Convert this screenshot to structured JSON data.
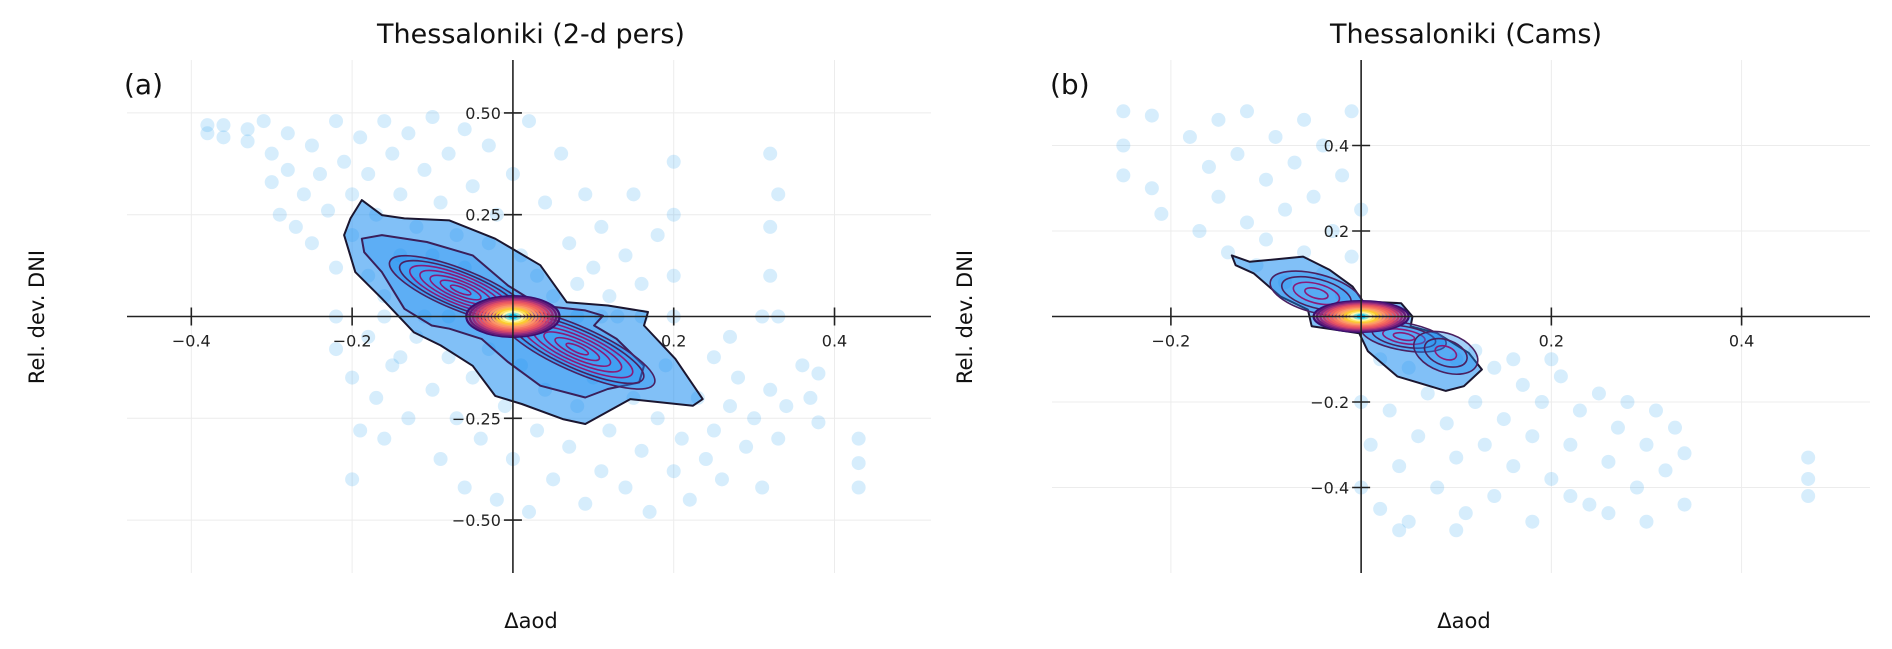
{
  "colors": {
    "scatter": "#1e9cf0",
    "density_fill": "#1a8cf0",
    "outer_contour": "#1b1630",
    "lobe_contour": "#8a1a78",
    "peak_palette": [
      "#3b0f70",
      "#8c2981",
      "#de4968",
      "#f66e5b",
      "#fe9f6d",
      "#fcd225",
      "#fcfdbf",
      "#00c8ff"
    ],
    "grid": "#ececec",
    "axis": "#222222"
  },
  "chart_data": [
    {
      "type": "scatter",
      "panel_label": "(a)",
      "title": "Thessaloniki (2-d pers)",
      "xlabel": "Δaod",
      "ylabel": "Rel. dev. DNI",
      "xlim": [
        -0.48,
        0.52
      ],
      "ylim": [
        -0.63,
        0.63
      ],
      "xticks": [
        -0.4,
        -0.2,
        0.2,
        0.4
      ],
      "xtick_labels": [
        "−0.4",
        "−0.2",
        "0.2",
        "0.4"
      ],
      "yticks": [
        0.5,
        0.25,
        -0.25,
        -0.5
      ],
      "ytick_labels": [
        "0.50",
        "0.25",
        "−0.25",
        "−0.50"
      ],
      "grid": true,
      "points": [
        [
          -0.38,
          0.47
        ],
        [
          -0.38,
          0.45
        ],
        [
          -0.36,
          0.47
        ],
        [
          -0.36,
          0.44
        ],
        [
          -0.33,
          0.46
        ],
        [
          -0.33,
          0.43
        ],
        [
          -0.31,
          0.48
        ],
        [
          -0.3,
          0.4
        ],
        [
          -0.3,
          0.33
        ],
        [
          -0.29,
          0.25
        ],
        [
          -0.28,
          0.45
        ],
        [
          -0.28,
          0.36
        ],
        [
          -0.27,
          0.22
        ],
        [
          -0.26,
          0.3
        ],
        [
          -0.25,
          0.42
        ],
        [
          -0.25,
          0.18
        ],
        [
          -0.24,
          0.35
        ],
        [
          -0.23,
          0.26
        ],
        [
          -0.22,
          0.48
        ],
        [
          -0.22,
          0.12
        ],
        [
          -0.21,
          0.38
        ],
        [
          -0.2,
          0.3
        ],
        [
          -0.2,
          0.2
        ],
        [
          -0.19,
          0.44
        ],
        [
          -0.18,
          0.1
        ],
        [
          -0.18,
          0.35
        ],
        [
          -0.17,
          0.25
        ],
        [
          -0.16,
          0.48
        ],
        [
          -0.16,
          0.05
        ],
        [
          -0.15,
          0.4
        ],
        [
          -0.14,
          0.3
        ],
        [
          -0.14,
          0.15
        ],
        [
          -0.13,
          0.45
        ],
        [
          -0.12,
          0.22
        ],
        [
          -0.12,
          0.08
        ],
        [
          -0.11,
          0.36
        ],
        [
          -0.1,
          0.49
        ],
        [
          -0.1,
          0.15
        ],
        [
          -0.09,
          0.28
        ],
        [
          -0.08,
          0.4
        ],
        [
          -0.08,
          0.05
        ],
        [
          -0.07,
          0.2
        ],
        [
          -0.06,
          0.46
        ],
        [
          -0.06,
          0.12
        ],
        [
          -0.05,
          0.32
        ],
        [
          -0.04,
          0.08
        ],
        [
          -0.03,
          0.42
        ],
        [
          -0.03,
          0.18
        ],
        [
          -0.02,
          0.25
        ],
        [
          -0.01,
          0.06
        ],
        [
          0.0,
          0.35
        ],
        [
          0.01,
          0.15
        ],
        [
          0.02,
          0.48
        ],
        [
          0.03,
          0.1
        ],
        [
          0.04,
          0.28
        ],
        [
          0.05,
          0.05
        ],
        [
          0.06,
          0.4
        ],
        [
          0.07,
          0.18
        ],
        [
          0.08,
          0.08
        ],
        [
          0.09,
          0.3
        ],
        [
          0.1,
          0.12
        ],
        [
          0.11,
          0.22
        ],
        [
          0.12,
          0.05
        ],
        [
          0.14,
          0.15
        ],
        [
          0.15,
          0.3
        ],
        [
          0.16,
          0.08
        ],
        [
          0.18,
          0.2
        ],
        [
          0.2,
          0.38
        ],
        [
          0.2,
          0.25
        ],
        [
          0.2,
          0.1
        ],
        [
          0.32,
          0.4
        ],
        [
          0.32,
          0.22
        ],
        [
          0.32,
          0.1
        ],
        [
          0.33,
          0.3
        ],
        [
          -0.22,
          0
        ],
        [
          -0.16,
          0
        ],
        [
          -0.11,
          0
        ],
        [
          -0.08,
          0
        ],
        [
          -0.05,
          0
        ],
        [
          -0.02,
          0
        ],
        [
          0.02,
          0
        ],
        [
          0.05,
          0
        ],
        [
          0.08,
          0
        ],
        [
          0.11,
          0
        ],
        [
          0.13,
          0
        ],
        [
          0.16,
          0
        ],
        [
          0.2,
          0
        ],
        [
          0.31,
          0
        ],
        [
          0.33,
          0
        ],
        [
          -0.22,
          -0.08
        ],
        [
          -0.2,
          -0.15
        ],
        [
          -0.2,
          -0.4
        ],
        [
          -0.19,
          -0.28
        ],
        [
          -0.18,
          -0.05
        ],
        [
          -0.17,
          -0.2
        ],
        [
          -0.16,
          -0.3
        ],
        [
          -0.15,
          -0.12
        ],
        [
          -0.14,
          -0.1
        ],
        [
          -0.13,
          -0.25
        ],
        [
          -0.12,
          -0.05
        ],
        [
          -0.1,
          -0.18
        ],
        [
          -0.09,
          -0.35
        ],
        [
          -0.08,
          -0.1
        ],
        [
          -0.07,
          -0.25
        ],
        [
          -0.06,
          -0.42
        ],
        [
          -0.05,
          -0.15
        ],
        [
          -0.04,
          -0.3
        ],
        [
          -0.03,
          -0.08
        ],
        [
          -0.02,
          -0.45
        ],
        [
          -0.01,
          -0.22
        ],
        [
          0.0,
          -0.35
        ],
        [
          0.01,
          -0.12
        ],
        [
          0.02,
          -0.48
        ],
        [
          0.03,
          -0.28
        ],
        [
          0.04,
          -0.18
        ],
        [
          0.05,
          -0.4
        ],
        [
          0.06,
          -0.1
        ],
        [
          0.07,
          -0.32
        ],
        [
          0.08,
          -0.22
        ],
        [
          0.09,
          -0.46
        ],
        [
          0.1,
          -0.15
        ],
        [
          0.11,
          -0.38
        ],
        [
          0.12,
          -0.28
        ],
        [
          0.13,
          -0.08
        ],
        [
          0.14,
          -0.42
        ],
        [
          0.15,
          -0.2
        ],
        [
          0.16,
          -0.33
        ],
        [
          0.17,
          -0.48
        ],
        [
          0.18,
          -0.25
        ],
        [
          0.19,
          -0.12
        ],
        [
          0.2,
          -0.38
        ],
        [
          0.21,
          -0.3
        ],
        [
          0.22,
          -0.45
        ],
        [
          0.23,
          -0.2
        ],
        [
          0.24,
          -0.35
        ],
        [
          0.25,
          -0.28
        ],
        [
          0.26,
          -0.4
        ],
        [
          0.27,
          -0.22
        ],
        [
          0.28,
          -0.15
        ],
        [
          0.29,
          -0.32
        ],
        [
          0.3,
          -0.25
        ],
        [
          0.31,
          -0.42
        ],
        [
          0.32,
          -0.18
        ],
        [
          0.33,
          -0.3
        ],
        [
          0.34,
          -0.22
        ],
        [
          0.36,
          -0.12
        ],
        [
          0.37,
          -0.2
        ],
        [
          0.38,
          -0.14
        ],
        [
          0.38,
          -0.26
        ],
        [
          0.43,
          -0.3
        ],
        [
          0.43,
          -0.36
        ],
        [
          0.43,
          -0.42
        ],
        [
          0.27,
          -0.05
        ],
        [
          0.25,
          -0.1
        ]
      ],
      "density_contours": [
        [
          [
            -0.188,
            0.286
          ],
          [
            -0.163,
            0.249
          ],
          [
            -0.135,
            0.241
          ],
          [
            -0.079,
            0.236
          ],
          [
            -0.022,
            0.191
          ],
          [
            0.034,
            0.126
          ],
          [
            0.067,
            0.035
          ],
          [
            0.118,
            0.027
          ],
          [
            0.168,
            0.011
          ],
          [
            0.163,
            -0.022
          ],
          [
            0.202,
            -0.104
          ],
          [
            0.236,
            -0.203
          ],
          [
            0.224,
            -0.219
          ],
          [
            0.146,
            -0.203
          ],
          [
            0.09,
            -0.264
          ],
          [
            0.062,
            -0.252
          ],
          [
            0.011,
            -0.215
          ],
          [
            -0.022,
            -0.195
          ],
          [
            -0.05,
            -0.121
          ],
          [
            -0.09,
            -0.071
          ],
          [
            -0.123,
            -0.039
          ],
          [
            -0.163,
            0.044
          ],
          [
            -0.196,
            0.109
          ],
          [
            -0.21,
            0.2
          ],
          [
            -0.202,
            0.241
          ]
        ],
        [
          [
            -0.188,
            0.191
          ],
          [
            -0.163,
            0.2
          ],
          [
            -0.107,
            0.183
          ],
          [
            -0.05,
            0.15
          ],
          [
            -0.006,
            0.076
          ],
          [
            0.034,
            0.027
          ],
          [
            0.09,
            0.015
          ],
          [
            0.112,
            0.002
          ],
          [
            0.101,
            -0.022
          ],
          [
            0.129,
            -0.055
          ],
          [
            0.163,
            -0.121
          ],
          [
            0.157,
            -0.162
          ],
          [
            0.118,
            -0.178
          ],
          [
            0.09,
            -0.199
          ],
          [
            0.034,
            -0.17
          ],
          [
            -0.006,
            -0.112
          ],
          [
            -0.039,
            -0.055
          ],
          [
            -0.079,
            -0.03
          ],
          [
            -0.101,
            -0.022
          ],
          [
            -0.135,
            0.019
          ],
          [
            -0.163,
            0.109
          ],
          [
            -0.185,
            0.158
          ]
        ]
      ],
      "density_lobes": [
        {
          "cx": -0.065,
          "cy": 0.065,
          "rx": 0.095,
          "ry": 0.05,
          "tilt_deg": 22,
          "levels": 7
        },
        {
          "cx": 0.08,
          "cy": -0.08,
          "rx": 0.105,
          "ry": 0.055,
          "tilt_deg": 24,
          "levels": 7
        }
      ],
      "density_peak": {
        "cx": 0,
        "cy": 0,
        "rx": 0.058,
        "ry": 0.05,
        "levels": 14
      }
    },
    {
      "type": "scatter",
      "panel_label": "(b)",
      "title": "Thessaloniki (Cams)",
      "xlabel": "Δaod",
      "ylabel": "Rel. dev. DNI",
      "xlim": [
        -0.325,
        0.535
      ],
      "ylim": [
        -0.6,
        0.6
      ],
      "xticks": [
        -0.2,
        0.2,
        0.4
      ],
      "xtick_labels": [
        "−0.2",
        "0.2",
        "0.4"
      ],
      "yticks": [
        0.4,
        0.2,
        -0.2,
        -0.4
      ],
      "ytick_labels": [
        "0.4",
        "0.2",
        "−0.2",
        "−0.4"
      ],
      "grid": true,
      "points": [
        [
          -0.25,
          0.48
        ],
        [
          -0.25,
          0.4
        ],
        [
          -0.25,
          0.33
        ],
        [
          -0.22,
          0.47
        ],
        [
          -0.22,
          0.3
        ],
        [
          -0.21,
          0.24
        ],
        [
          -0.18,
          0.42
        ],
        [
          -0.17,
          0.2
        ],
        [
          -0.16,
          0.35
        ],
        [
          -0.15,
          0.46
        ],
        [
          -0.15,
          0.28
        ],
        [
          -0.14,
          0.15
        ],
        [
          -0.13,
          0.38
        ],
        [
          -0.12,
          0.22
        ],
        [
          -0.12,
          0.48
        ],
        [
          -0.11,
          0.12
        ],
        [
          -0.1,
          0.32
        ],
        [
          -0.1,
          0.18
        ],
        [
          -0.09,
          0.42
        ],
        [
          -0.08,
          0.25
        ],
        [
          -0.08,
          0.08
        ],
        [
          -0.07,
          0.36
        ],
        [
          -0.06,
          0.15
        ],
        [
          -0.06,
          0.46
        ],
        [
          -0.05,
          0.28
        ],
        [
          -0.04,
          0.1
        ],
        [
          -0.04,
          0.4
        ],
        [
          -0.03,
          0.2
        ],
        [
          -0.02,
          0.05
        ],
        [
          -0.02,
          0.33
        ],
        [
          -0.01,
          0.48
        ],
        [
          -0.01,
          0.14
        ],
        [
          0.0,
          0.25
        ],
        [
          0.0,
          -0.2
        ],
        [
          0.0,
          -0.4
        ],
        [
          0.01,
          -0.3
        ],
        [
          0.02,
          -0.1
        ],
        [
          0.02,
          -0.45
        ],
        [
          0.03,
          -0.22
        ],
        [
          0.04,
          -0.35
        ],
        [
          0.05,
          -0.12
        ],
        [
          0.05,
          -0.48
        ],
        [
          0.06,
          -0.28
        ],
        [
          0.07,
          -0.18
        ],
        [
          0.08,
          -0.4
        ],
        [
          0.09,
          -0.25
        ],
        [
          0.1,
          -0.1
        ],
        [
          0.1,
          -0.33
        ],
        [
          0.11,
          -0.46
        ],
        [
          0.12,
          -0.2
        ],
        [
          0.13,
          -0.3
        ],
        [
          0.14,
          -0.12
        ],
        [
          0.14,
          -0.42
        ],
        [
          0.15,
          -0.24
        ],
        [
          0.16,
          -0.35
        ],
        [
          0.17,
          -0.16
        ],
        [
          0.18,
          -0.28
        ],
        [
          0.18,
          -0.48
        ],
        [
          0.19,
          -0.2
        ],
        [
          0.2,
          -0.38
        ],
        [
          0.21,
          -0.14
        ],
        [
          0.22,
          -0.3
        ],
        [
          0.23,
          -0.22
        ],
        [
          0.24,
          -0.44
        ],
        [
          0.25,
          -0.18
        ],
        [
          0.26,
          -0.34
        ],
        [
          0.27,
          -0.26
        ],
        [
          0.28,
          -0.2
        ],
        [
          0.29,
          -0.4
        ],
        [
          0.3,
          -0.3
        ],
        [
          0.31,
          -0.22
        ],
        [
          0.32,
          -0.36
        ],
        [
          0.33,
          -0.26
        ],
        [
          0.34,
          -0.44
        ],
        [
          0.34,
          -0.32
        ],
        [
          0.3,
          -0.48
        ],
        [
          0.26,
          -0.46
        ],
        [
          0.22,
          -0.42
        ],
        [
          0.47,
          -0.33
        ],
        [
          0.47,
          -0.38
        ],
        [
          0.47,
          -0.42
        ],
        [
          0.08,
          -0.06
        ],
        [
          0.12,
          -0.08
        ],
        [
          0.16,
          -0.1
        ],
        [
          0.2,
          -0.1
        ],
        [
          0.04,
          -0.5
        ],
        [
          0.1,
          -0.5
        ]
      ],
      "density_contours": [
        [
          [
            -0.136,
            0.143
          ],
          [
            -0.117,
            0.128
          ],
          [
            -0.061,
            0.14
          ],
          [
            -0.033,
            0.109
          ],
          [
            -0.009,
            0.07
          ],
          [
            0.002,
            0.035
          ],
          [
            0.042,
            0.031
          ],
          [
            0.054,
            0
          ],
          [
            0.052,
            -0.023
          ],
          [
            0.08,
            -0.039
          ],
          [
            0.113,
            -0.085
          ],
          [
            0.127,
            -0.124
          ],
          [
            0.108,
            -0.163
          ],
          [
            0.089,
            -0.174
          ],
          [
            0.038,
            -0.14
          ],
          [
            0.007,
            -0.081
          ],
          [
            -0.002,
            -0.039
          ],
          [
            -0.052,
            -0.023
          ],
          [
            -0.056,
            0.016
          ],
          [
            -0.085,
            0.047
          ],
          [
            -0.113,
            0.101
          ],
          [
            -0.132,
            0.12
          ]
        ]
      ],
      "density_lobes": [
        {
          "cx": -0.047,
          "cy": 0.054,
          "rx": 0.05,
          "ry": 0.045,
          "tilt_deg": 15,
          "levels": 4
        },
        {
          "cx": 0.045,
          "cy": -0.047,
          "rx": 0.045,
          "ry": 0.032,
          "tilt_deg": 10,
          "levels": 4
        },
        {
          "cx": 0.089,
          "cy": -0.085,
          "rx": 0.035,
          "ry": 0.045,
          "tilt_deg": 20,
          "levels": 3
        }
      ],
      "density_peak": {
        "cx": 0,
        "cy": 0,
        "rx": 0.05,
        "ry": 0.036,
        "levels": 14
      }
    }
  ]
}
